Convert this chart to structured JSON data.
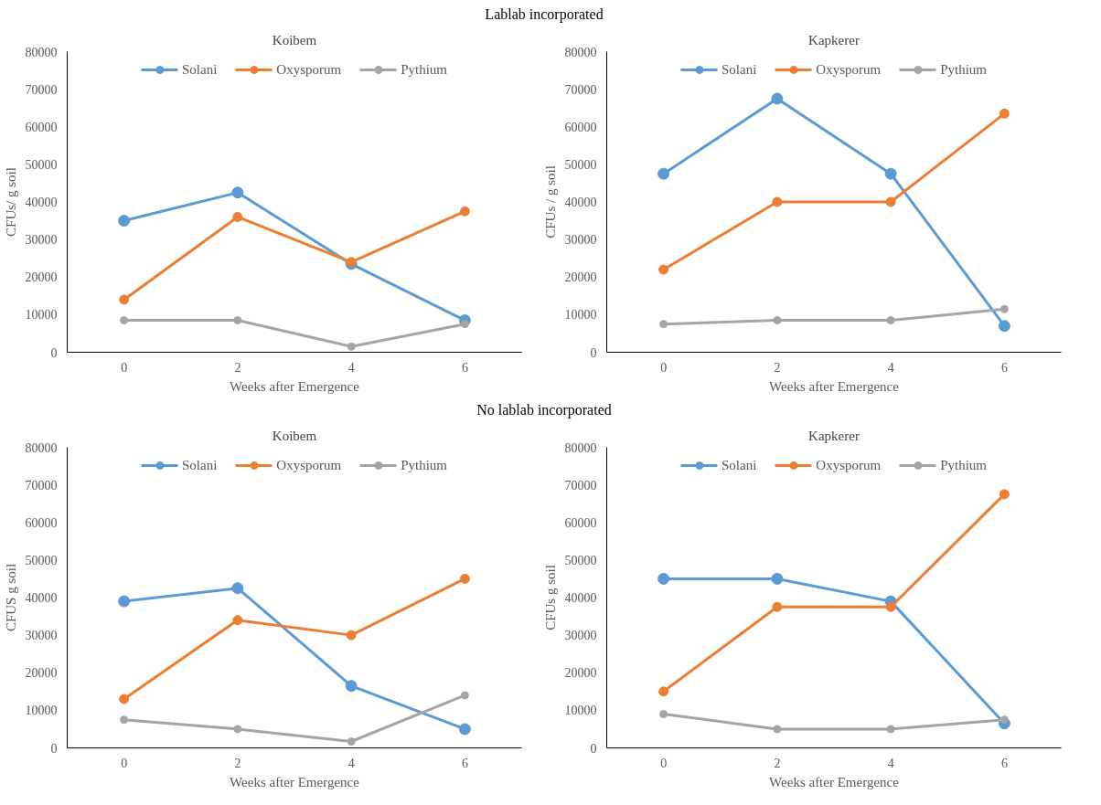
{
  "chart_data": [
    {
      "type": "line",
      "title": "Koibem",
      "annotations": [
        "Lablab incorporated"
      ],
      "xlabel": "Weeks after Emergence",
      "ylabel": "CFUs/ g soil",
      "categories": [
        "0",
        "2",
        "4",
        "6"
      ],
      "ylim": [
        0,
        80000
      ],
      "yticks": [
        0,
        10000,
        20000,
        30000,
        40000,
        50000,
        60000,
        70000,
        80000
      ],
      "grid": false,
      "legend": "top",
      "marker": "circle",
      "line_style": "solid",
      "series": [
        {
          "name": "Solani",
          "color": "#5b9bd5",
          "values": [
            35000,
            42500,
            23500,
            8500
          ]
        },
        {
          "name": "Oxysporum",
          "color": "#ed7d31",
          "values": [
            14000,
            36000,
            24000,
            37500
          ]
        },
        {
          "name": "Pythium",
          "color": "#a5a5a5",
          "values": [
            8500,
            8500,
            1500,
            7500
          ]
        }
      ]
    },
    {
      "type": "line",
      "title": "Kapkerer",
      "xlabel": "Weeks after Emergence",
      "ylabel": "CFUs / g soil",
      "categories": [
        "0",
        "2",
        "4",
        "6"
      ],
      "ylim": [
        0,
        80000
      ],
      "yticks": [
        0,
        10000,
        20000,
        30000,
        40000,
        50000,
        60000,
        70000,
        80000
      ],
      "grid": false,
      "legend": "top",
      "marker": "circle",
      "line_style": "solid",
      "series": [
        {
          "name": "Solani",
          "color": "#5b9bd5",
          "values": [
            47500,
            67500,
            47500,
            7000
          ]
        },
        {
          "name": "Oxysporum",
          "color": "#ed7d31",
          "values": [
            22000,
            40000,
            40000,
            63500
          ]
        },
        {
          "name": "Pythium",
          "color": "#a5a5a5",
          "values": [
            7500,
            8500,
            8500,
            11500
          ]
        }
      ]
    },
    {
      "type": "line",
      "title": "Koibem",
      "annotations": [
        "No lablab incorporated"
      ],
      "xlabel": "Weeks after Emergence",
      "ylabel": "CFUS g soil",
      "categories": [
        "0",
        "2",
        "4",
        "6"
      ],
      "ylim": [
        0,
        80000
      ],
      "yticks": [
        0,
        10000,
        20000,
        30000,
        40000,
        50000,
        60000,
        70000,
        80000
      ],
      "grid": false,
      "legend": "top",
      "marker": "circle",
      "line_style": "solid",
      "series": [
        {
          "name": "Solani",
          "color": "#5b9bd5",
          "values": [
            39000,
            42500,
            16500,
            5000
          ]
        },
        {
          "name": "Oxysporum",
          "color": "#ed7d31",
          "values": [
            13000,
            34000,
            30000,
            45000
          ]
        },
        {
          "name": "Pythium",
          "color": "#a5a5a5",
          "values": [
            7500,
            5000,
            1700,
            14000
          ]
        }
      ]
    },
    {
      "type": "line",
      "title": "Kapkerer",
      "xlabel": "Weeks after Emergence",
      "ylabel": "CFUs g soil",
      "categories": [
        "0",
        "2",
        "4",
        "6"
      ],
      "ylim": [
        0,
        80000
      ],
      "yticks": [
        0,
        10000,
        20000,
        30000,
        40000,
        50000,
        60000,
        70000,
        80000
      ],
      "grid": false,
      "legend": "top",
      "marker": "circle",
      "line_style": "solid",
      "series": [
        {
          "name": "Solani",
          "color": "#5b9bd5",
          "values": [
            45000,
            45000,
            39000,
            6500
          ]
        },
        {
          "name": "Oxysporum",
          "color": "#ed7d31",
          "values": [
            15000,
            37500,
            37500,
            67500
          ]
        },
        {
          "name": "Pythium",
          "color": "#a5a5a5",
          "values": [
            9000,
            5000,
            5000,
            7500
          ]
        }
      ]
    }
  ]
}
